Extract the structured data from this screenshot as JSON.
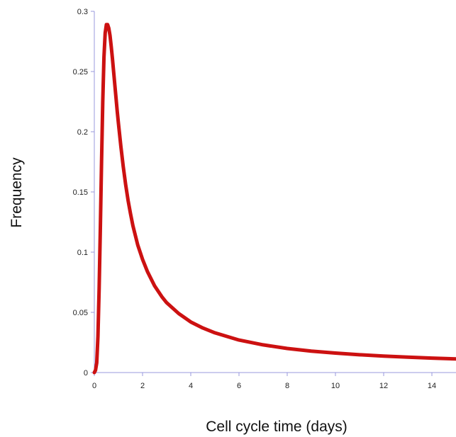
{
  "chart_data": {
    "type": "line",
    "title": "",
    "xlabel": "Cell cycle time (days)",
    "ylabel": "Frequency",
    "xlim": [
      0,
      15
    ],
    "ylim": [
      0,
      0.3
    ],
    "x_ticks": [
      0,
      2,
      4,
      6,
      8,
      10,
      12,
      14
    ],
    "x_tick_labels": [
      "0",
      "2",
      "4",
      "6",
      "8",
      "10",
      "12",
      "14"
    ],
    "y_ticks": [
      0,
      0.05,
      0.1,
      0.15,
      0.2,
      0.25,
      0.3
    ],
    "y_tick_labels": [
      "0",
      "0.05",
      "0.1",
      "0.15",
      "0.2",
      "0.25",
      "0.3"
    ],
    "grid": false,
    "legend": "none",
    "axis_color": "#9999dd",
    "series": [
      {
        "color": "#cc1111",
        "x": [
          0,
          0.05,
          0.1,
          0.15,
          0.2,
          0.25,
          0.3,
          0.35,
          0.4,
          0.45,
          0.5,
          0.55,
          0.6,
          0.65,
          0.7,
          0.75,
          0.8,
          0.85,
          0.9,
          0.95,
          1.0,
          1.1,
          1.2,
          1.3,
          1.4,
          1.5,
          1.6,
          1.8,
          2.0,
          2.2,
          2.5,
          2.8,
          3.0,
          3.5,
          4.0,
          4.5,
          5.0,
          5.5,
          6.0,
          7.0,
          8.0,
          9.0,
          10.0,
          11.0,
          12.0,
          13.0,
          14.0,
          15.0
        ],
        "y": [
          0,
          0.002,
          0.008,
          0.03,
          0.07,
          0.12,
          0.175,
          0.225,
          0.262,
          0.282,
          0.289,
          0.289,
          0.286,
          0.28,
          0.271,
          0.261,
          0.25,
          0.239,
          0.228,
          0.217,
          0.207,
          0.188,
          0.171,
          0.156,
          0.143,
          0.132,
          0.122,
          0.106,
          0.094,
          0.084,
          0.072,
          0.063,
          0.058,
          0.049,
          0.042,
          0.037,
          0.033,
          0.03,
          0.027,
          0.023,
          0.02,
          0.0178,
          0.0162,
          0.0148,
          0.0137,
          0.0128,
          0.012,
          0.0113
        ]
      }
    ]
  }
}
